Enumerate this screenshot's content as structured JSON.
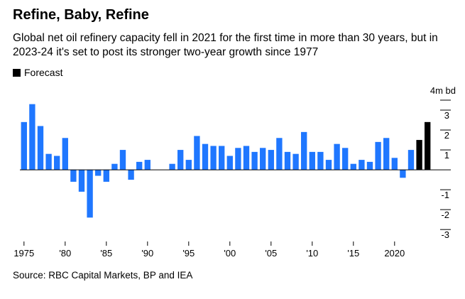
{
  "title": "Refine, Baby, Refine",
  "subtitle": "Global net oil refinery capacity fell in 2021 for the first time in more than 30 years, but in 2023-24 it's set to post its stronger two-year growth since 1977",
  "legend": {
    "label": "Forecast",
    "color": "#000000"
  },
  "source": "Source: RBC Capital Markets, BP and IEA",
  "chart_data": {
    "type": "bar",
    "title": "Refine, Baby, Refine",
    "ylabel": "4m bd",
    "ylim": [
      -3.6,
      4
    ],
    "yticks": [
      3,
      2,
      1,
      -1,
      -2,
      -3
    ],
    "ytick_labels": [
      "3",
      "2",
      "1",
      "-1",
      "-2",
      "-3"
    ],
    "unit_label": "4m bd",
    "xtick_years": [
      1975,
      1980,
      1985,
      1990,
      1995,
      2000,
      2005,
      2010,
      2015,
      2020
    ],
    "xtick_labels": [
      "1975",
      "'80",
      "'85",
      "'90",
      "'95",
      "'00",
      "'05",
      "'10",
      "'15",
      "2020"
    ],
    "colors": {
      "actual": "#1f77ff",
      "forecast": "#000000"
    },
    "forecast_start_year": 2023,
    "series": [
      {
        "name": "Net refinery capacity change",
        "years": [
          1975,
          1976,
          1977,
          1978,
          1979,
          1980,
          1981,
          1982,
          1983,
          1984,
          1985,
          1986,
          1987,
          1988,
          1989,
          1990,
          1991,
          1992,
          1993,
          1994,
          1995,
          1996,
          1997,
          1998,
          1999,
          2000,
          2001,
          2002,
          2003,
          2004,
          2005,
          2006,
          2007,
          2008,
          2009,
          2010,
          2011,
          2012,
          2013,
          2014,
          2015,
          2016,
          2017,
          2018,
          2019,
          2020,
          2021,
          2022,
          2023,
          2024
        ],
        "values": [
          2.4,
          3.3,
          2.2,
          0.8,
          0.7,
          1.6,
          -0.6,
          -1.1,
          -2.4,
          -0.3,
          -0.6,
          0.3,
          1.0,
          -0.5,
          0.4,
          0.5,
          0.0,
          0.0,
          0.3,
          1.0,
          0.5,
          1.7,
          1.3,
          1.2,
          1.2,
          0.7,
          1.1,
          1.2,
          0.9,
          1.1,
          1.0,
          1.6,
          0.9,
          0.8,
          1.9,
          0.9,
          0.9,
          0.5,
          1.3,
          1.1,
          0.3,
          0.5,
          0.4,
          1.4,
          1.6,
          0.6,
          -0.4,
          1.0,
          1.5,
          2.4
        ]
      }
    ]
  }
}
